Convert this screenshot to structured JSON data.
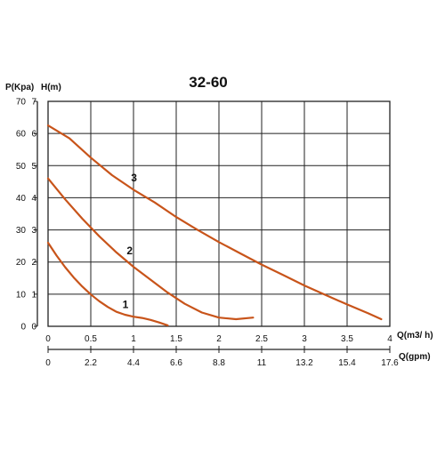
{
  "chart_data": {
    "type": "line",
    "title": "32-60",
    "ylabel_left": "P(Kpa)",
    "ylabel_right": "H(m)",
    "xlabel_primary": "Q(m3/ h)",
    "xlabel_secondary": "Q(gpm)",
    "xlim": [
      0,
      4
    ],
    "ylim": [
      0,
      7
    ],
    "x_ticks": [
      "0",
      "0.5",
      "1",
      "1.5",
      "2",
      "2.5",
      "3",
      "3.5",
      "4"
    ],
    "x_ticks_secondary": [
      "0",
      "2.2",
      "4.4",
      "6.6",
      "8.8",
      "11",
      "13.2",
      "15.4",
      "17.6"
    ],
    "y_ticks_kpa": [
      "0",
      "10",
      "20",
      "30",
      "40",
      "50",
      "60",
      "70"
    ],
    "y_ticks_m": [
      "0",
      "1",
      "2",
      "3",
      "4",
      "5",
      "6",
      "7"
    ],
    "grid": true,
    "curve_color": "#c8541a",
    "series": [
      {
        "name": "1",
        "x": [
          0,
          0.1,
          0.2,
          0.3,
          0.4,
          0.5,
          0.6,
          0.7,
          0.8,
          0.9,
          1.0,
          1.1,
          1.2,
          1.3,
          1.4
        ],
        "y": [
          2.6,
          2.2,
          1.84,
          1.52,
          1.24,
          0.99,
          0.78,
          0.6,
          0.45,
          0.36,
          0.3,
          0.26,
          0.2,
          0.12,
          0.03
        ]
      },
      {
        "name": "2",
        "x": [
          0,
          0.2,
          0.4,
          0.6,
          0.8,
          1.0,
          1.2,
          1.4,
          1.6,
          1.8,
          2.0,
          2.2,
          2.4
        ],
        "y": [
          4.6,
          3.95,
          3.35,
          2.8,
          2.3,
          1.85,
          1.45,
          1.05,
          0.7,
          0.43,
          0.27,
          0.22,
          0.27
        ]
      },
      {
        "name": "3",
        "x": [
          0,
          0.25,
          0.5,
          0.75,
          1.0,
          1.25,
          1.5,
          1.75,
          2.0,
          2.25,
          2.5,
          2.75,
          3.0,
          3.25,
          3.5,
          3.75,
          3.9
        ],
        "y": [
          6.25,
          5.85,
          5.25,
          4.7,
          4.25,
          3.85,
          3.4,
          3.0,
          2.62,
          2.27,
          1.92,
          1.6,
          1.27,
          0.97,
          0.68,
          0.4,
          0.22
        ]
      }
    ]
  }
}
